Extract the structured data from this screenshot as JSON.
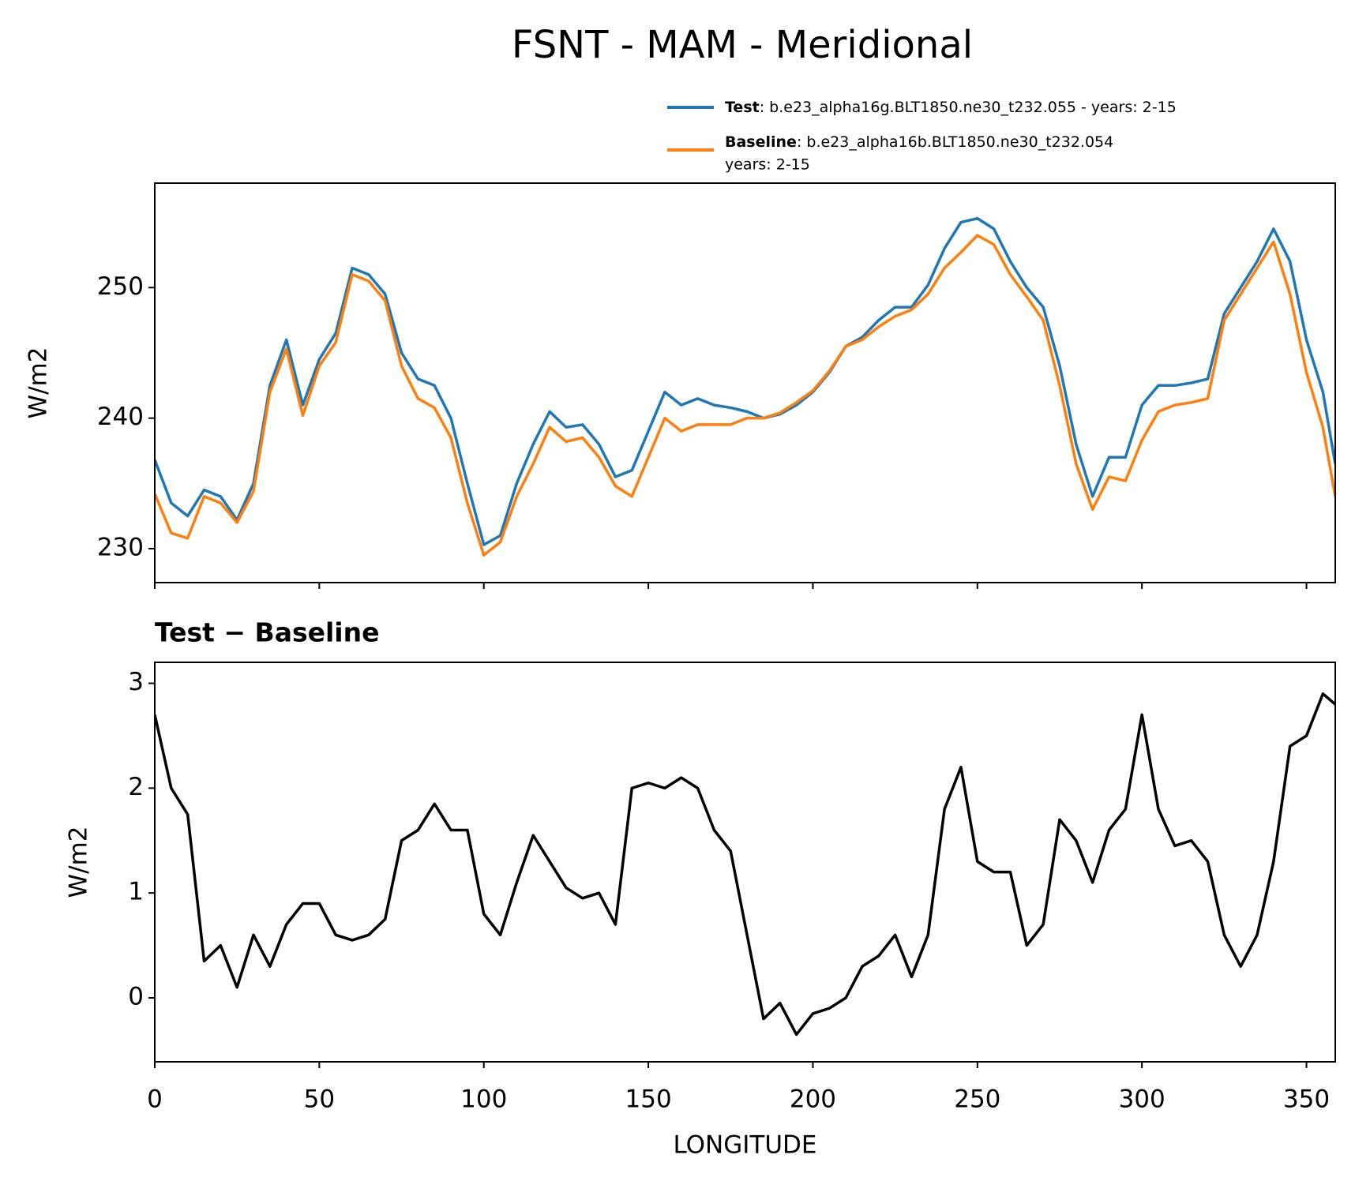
{
  "chart_data": [
    {
      "type": "line",
      "title": "FSNT - MAM - Meridional",
      "ylabel": "W/m2",
      "x": [
        0,
        5,
        10,
        15,
        20,
        25,
        30,
        35,
        40,
        45,
        50,
        55,
        60,
        65,
        70,
        75,
        80,
        85,
        90,
        95,
        100,
        105,
        110,
        115,
        120,
        125,
        130,
        135,
        140,
        145,
        150,
        155,
        160,
        165,
        170,
        175,
        180,
        185,
        190,
        195,
        200,
        205,
        210,
        215,
        220,
        225,
        230,
        235,
        240,
        245,
        250,
        255,
        260,
        265,
        270,
        275,
        280,
        285,
        290,
        295,
        300,
        305,
        310,
        315,
        320,
        325,
        330,
        335,
        340,
        345,
        350,
        355,
        358.75
      ],
      "series": [
        {
          "name": "Test",
          "description": [
            ": b.e23_alpha16g.BLT1850.ne30_t232.055 - years: 2-15"
          ],
          "color": "#1f77b4",
          "values": [
            236.8,
            233.5,
            232.5,
            234.5,
            234,
            232.2,
            235,
            242.5,
            246,
            241,
            244.5,
            246.5,
            251.5,
            251,
            249.5,
            245,
            243,
            242.5,
            240,
            235,
            230.3,
            231,
            235,
            238,
            240.5,
            239.3,
            239.5,
            238,
            235.5,
            236,
            239,
            242,
            241,
            241.5,
            241,
            240.8,
            240.5,
            240,
            240.3,
            241,
            242,
            243.5,
            245.5,
            246.2,
            247.5,
            248.5,
            248.5,
            250.2,
            253,
            255,
            255.3,
            254.5,
            252,
            250,
            248.5,
            244,
            238,
            234,
            237,
            237,
            241,
            242.5,
            242.5,
            242.7,
            243,
            248,
            250,
            252,
            254.5,
            252,
            246,
            242,
            236.5
          ]
        },
        {
          "name": "Baseline",
          "description": [
            ": b.e23_alpha16b.BLT1850.ne30_t232.054",
            "years: 2-15"
          ],
          "color": "#ff7f0e",
          "values": [
            234.2,
            231.2,
            230.8,
            234,
            233.5,
            232,
            234.4,
            242,
            245.3,
            240.2,
            244,
            245.8,
            251,
            250.5,
            249,
            244,
            241.5,
            240.8,
            238.5,
            233.5,
            229.5,
            230.5,
            234,
            236.5,
            239.3,
            238.2,
            238.5,
            237,
            234.8,
            234,
            237,
            240,
            239,
            239.5,
            239.5,
            239.5,
            240,
            240,
            240.4,
            241.2,
            242.1,
            243.6,
            245.5,
            246,
            247,
            247.8,
            248.3,
            249.5,
            251.5,
            252.7,
            254,
            253.3,
            251,
            249.3,
            247.5,
            242.5,
            236.5,
            233,
            235.5,
            235.2,
            238.3,
            240.5,
            241,
            241.2,
            241.5,
            247.5,
            249.5,
            251.5,
            253.5,
            249.5,
            243.5,
            239.3,
            234
          ]
        }
      ],
      "xlim": [
        0,
        358.75
      ],
      "xticks": [
        0,
        50,
        100,
        150,
        200,
        250,
        300,
        350
      ],
      "ylim": [
        227.4,
        258
      ],
      "yticks": [
        230,
        240,
        250
      ]
    },
    {
      "type": "line",
      "title": "Test − Baseline",
      "ylabel": "W/m2",
      "xlabel": "LONGITUDE",
      "x": [
        0,
        5,
        10,
        15,
        20,
        25,
        30,
        35,
        40,
        45,
        50,
        55,
        60,
        65,
        70,
        75,
        80,
        85,
        90,
        95,
        100,
        105,
        110,
        115,
        120,
        125,
        130,
        135,
        140,
        145,
        150,
        155,
        160,
        165,
        170,
        175,
        180,
        185,
        190,
        195,
        200,
        205,
        210,
        215,
        220,
        225,
        230,
        235,
        240,
        245,
        250,
        255,
        260,
        265,
        270,
        275,
        280,
        285,
        290,
        295,
        300,
        305,
        310,
        315,
        320,
        325,
        330,
        335,
        340,
        345,
        350,
        355,
        358.75
      ],
      "color": "#000000",
      "values": [
        2.7,
        2.0,
        1.75,
        0.35,
        0.5,
        0.1,
        0.6,
        0.3,
        0.7,
        0.9,
        0.9,
        0.6,
        0.55,
        0.6,
        0.75,
        1.5,
        1.6,
        1.85,
        1.6,
        1.6,
        0.8,
        0.6,
        1.1,
        1.55,
        1.3,
        1.05,
        0.95,
        1.0,
        0.7,
        2.0,
        2.05,
        2.0,
        2.1,
        2.0,
        1.6,
        1.4,
        0.6,
        -0.2,
        -0.05,
        -0.35,
        -0.15,
        -0.1,
        0.0,
        0.3,
        0.4,
        0.6,
        0.2,
        0.6,
        1.8,
        2.2,
        1.3,
        1.2,
        1.2,
        0.5,
        0.7,
        1.7,
        1.5,
        1.1,
        1.6,
        1.8,
        2.7,
        1.8,
        1.45,
        1.5,
        1.3,
        0.6,
        0.3,
        0.6,
        1.3,
        2.4,
        2.5,
        2.9,
        2.8
      ],
      "xlim": [
        0,
        358.75
      ],
      "xticks": [
        0,
        50,
        100,
        150,
        200,
        250,
        300,
        350
      ],
      "ylim": [
        -0.61,
        3.2
      ],
      "yticks": [
        0,
        1,
        2,
        3
      ]
    }
  ]
}
